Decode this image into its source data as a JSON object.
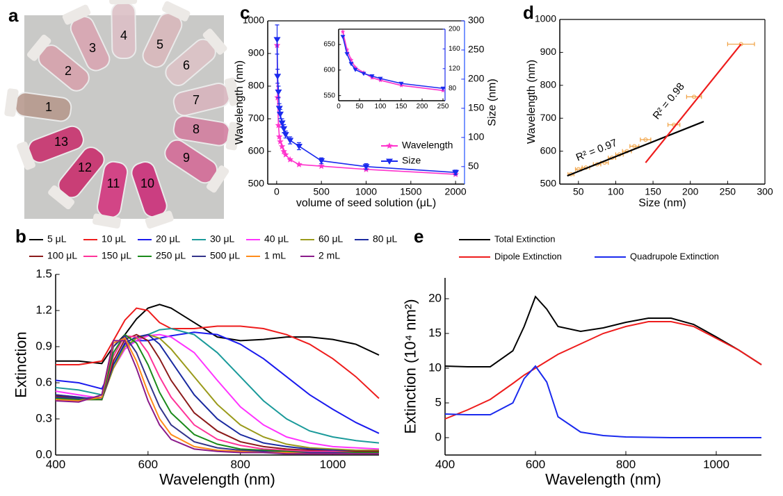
{
  "photo": {
    "panel_label": "a",
    "tubes": [
      "1",
      "2",
      "3",
      "4",
      "5",
      "6",
      "7",
      "8",
      "9",
      "10",
      "11",
      "12",
      "13"
    ]
  },
  "chart_data": [
    {
      "type": "line",
      "panel_label": "b",
      "xlabel": "Wavelength (nm)",
      "ylabel": "Extinction",
      "x": [
        400,
        450,
        500,
        525,
        550,
        575,
        600,
        625,
        650,
        700,
        750,
        800,
        850,
        900,
        950,
        1000,
        1050,
        1100
      ],
      "xlim": [
        400,
        1100
      ],
      "xticks": [
        400,
        600,
        800,
        1000
      ],
      "ylim": [
        0,
        1.5
      ],
      "yticks": [
        {
          "value": 0,
          "label": "0.0"
        },
        0.3,
        0.6,
        0.9,
        1.2,
        1.5
      ],
      "series": [
        {
          "name": "5 μL",
          "color": "#000000",
          "values": [
            0.78,
            0.78,
            0.76,
            0.9,
            1.0,
            1.13,
            1.22,
            1.25,
            1.22,
            1.1,
            0.98,
            0.95,
            0.96,
            0.98,
            0.98,
            0.96,
            0.92,
            0.83
          ]
        },
        {
          "name": "10 μL",
          "color": "#ee1c1c",
          "values": [
            0.75,
            0.75,
            0.78,
            0.95,
            1.12,
            1.22,
            1.2,
            1.1,
            1.05,
            1.05,
            1.07,
            1.07,
            1.05,
            1.0,
            0.92,
            0.8,
            0.65,
            0.47
          ]
        },
        {
          "name": "20 μL",
          "color": "#1a1aee",
          "values": [
            0.62,
            0.6,
            0.55,
            0.75,
            0.92,
            0.95,
            0.95,
            0.97,
            0.99,
            1.02,
            1.0,
            0.92,
            0.8,
            0.65,
            0.5,
            0.38,
            0.27,
            0.18
          ]
        },
        {
          "name": "30 μL",
          "color": "#1a9a9a",
          "values": [
            0.56,
            0.54,
            0.5,
            0.75,
            0.9,
            0.95,
            1.0,
            1.04,
            1.05,
            1.0,
            0.85,
            0.65,
            0.45,
            0.3,
            0.2,
            0.15,
            0.12,
            0.1
          ]
        },
        {
          "name": "40 μL",
          "color": "#ff33ff",
          "values": [
            0.53,
            0.5,
            0.47,
            0.72,
            0.88,
            0.95,
            0.99,
            1.0,
            0.98,
            0.85,
            0.62,
            0.4,
            0.25,
            0.15,
            0.1,
            0.07,
            0.06,
            0.05
          ]
        },
        {
          "name": "60 μL",
          "color": "#9a9a1a",
          "values": [
            0.5,
            0.48,
            0.46,
            0.72,
            0.9,
            0.97,
            1.0,
            0.97,
            0.88,
            0.65,
            0.42,
            0.25,
            0.15,
            0.09,
            0.06,
            0.05,
            0.04,
            0.04
          ]
        },
        {
          "name": "80 μL",
          "color": "#1a2aa0",
          "values": [
            0.5,
            0.48,
            0.46,
            0.75,
            0.93,
            0.98,
            1.0,
            0.92,
            0.78,
            0.5,
            0.3,
            0.17,
            0.1,
            0.07,
            0.05,
            0.04,
            0.03,
            0.03
          ]
        },
        {
          "name": "100 μL",
          "color": "#8b1a1a",
          "values": [
            0.49,
            0.47,
            0.46,
            0.78,
            0.96,
            1.0,
            0.95,
            0.8,
            0.62,
            0.35,
            0.2,
            0.11,
            0.07,
            0.05,
            0.04,
            0.03,
            0.03,
            0.03
          ]
        },
        {
          "name": "150 μL",
          "color": "#ff3399",
          "values": [
            0.48,
            0.46,
            0.46,
            0.82,
            0.99,
            0.98,
            0.85,
            0.65,
            0.48,
            0.25,
            0.13,
            0.08,
            0.05,
            0.04,
            0.03,
            0.03,
            0.02,
            0.02
          ]
        },
        {
          "name": "250 μL",
          "color": "#1a8a1a",
          "values": [
            0.47,
            0.46,
            0.46,
            0.85,
            1.0,
            0.93,
            0.75,
            0.52,
            0.35,
            0.17,
            0.09,
            0.05,
            0.04,
            0.03,
            0.02,
            0.02,
            0.02,
            0.02
          ]
        },
        {
          "name": "500 μL",
          "color": "#33338a",
          "values": [
            0.48,
            0.47,
            0.48,
            0.9,
            0.99,
            0.85,
            0.62,
            0.4,
            0.25,
            0.11,
            0.06,
            0.04,
            0.03,
            0.02,
            0.02,
            0.02,
            0.01,
            0.01
          ]
        },
        {
          "name": "1 mL",
          "color": "#ff8c1a",
          "values": [
            0.46,
            0.45,
            0.48,
            0.93,
            0.97,
            0.78,
            0.52,
            0.3,
            0.17,
            0.07,
            0.04,
            0.03,
            0.02,
            0.02,
            0.01,
            0.01,
            0.01,
            0.01
          ]
        },
        {
          "name": "2 mL",
          "color": "#8a1a8a",
          "values": [
            0.45,
            0.44,
            0.5,
            0.95,
            0.95,
            0.72,
            0.45,
            0.25,
            0.13,
            0.05,
            0.03,
            0.02,
            0.02,
            0.01,
            0.01,
            0.01,
            0.01,
            0.01
          ]
        }
      ]
    },
    {
      "type": "line",
      "panel_label": "c",
      "xlabel": "volume of seed solution (μL)",
      "ylabel": "Wavelength (nm)",
      "y2label": "Size (nm)",
      "ylabel_color": "#e020c0",
      "y2label_color": "#1f4fff",
      "x": [
        5,
        10,
        20,
        30,
        40,
        60,
        80,
        100,
        150,
        250,
        500,
        1000,
        2000
      ],
      "xlim": [
        -100,
        2100
      ],
      "xticks": [
        0,
        500,
        1000,
        1500,
        2000
      ],
      "ylim": [
        500,
        1000
      ],
      "yticks": [
        500,
        600,
        700,
        800,
        900,
        1000
      ],
      "y2lim": [
        20,
        300
      ],
      "y2ticks": [
        50,
        100,
        150,
        200,
        250,
        300
      ],
      "series": [
        {
          "name": "Wavelength",
          "color": "#ff33cc",
          "marker": "star",
          "values": [
            925,
            765,
            680,
            645,
            630,
            615,
            600,
            590,
            575,
            560,
            555,
            545,
            530
          ]
        },
        {
          "name": "Size",
          "color": "#1a2aee",
          "marker": "triangle-down",
          "axis": "y2",
          "values": [
            268,
            205,
            178,
            150,
            140,
            125,
            115,
            105,
            95,
            85,
            60,
            50,
            40
          ],
          "errors": [
            25,
            12,
            10,
            8,
            8,
            7,
            7,
            6,
            6,
            6,
            5,
            5,
            4
          ]
        }
      ]
    },
    {
      "type": "line",
      "x": [
        10,
        20,
        30,
        40,
        60,
        80,
        100,
        150,
        250
      ],
      "xlim": [
        0,
        255
      ],
      "xticks": [
        0,
        50,
        100,
        150,
        200,
        250
      ],
      "ylim": [
        540,
        680
      ],
      "yticks": [
        550,
        600,
        650
      ],
      "y2lim": [
        55,
        200
      ],
      "y2ticks": [
        80,
        120,
        160,
        200
      ],
      "series": [
        {
          "color": "#ff33cc",
          "marker": "star",
          "values": [
            675,
            640,
            620,
            605,
            595,
            585,
            580,
            570,
            560
          ]
        },
        {
          "color": "#1a2aee",
          "marker": "triangle-down",
          "axis": "y2",
          "values": [
            185,
            150,
            130,
            118,
            110,
            105,
            100,
            90,
            80
          ]
        }
      ]
    },
    {
      "type": "scatter",
      "panel_label": "d",
      "xlabel": "Size (nm)",
      "ylabel": "Wavelength (nm)",
      "xlim": [
        25,
        300
      ],
      "xticks": [
        50,
        100,
        150,
        200,
        250,
        300
      ],
      "ylim": [
        500,
        1000
      ],
      "yticks": [
        500,
        600,
        700,
        800,
        900,
        1000
      ],
      "series": [
        {
          "color": "#f0a040",
          "x": [
            268,
            205,
            178,
            140,
            125,
            115,
            105,
            95,
            85,
            75,
            60,
            50,
            40
          ],
          "values": [
            925,
            765,
            680,
            635,
            615,
            600,
            590,
            580,
            565,
            560,
            550,
            545,
            530
          ],
          "xerr": [
            18,
            10,
            8,
            7,
            6,
            6,
            5,
            5,
            5,
            5,
            5,
            4,
            4
          ]
        }
      ],
      "fits": [
        {
          "label": "R² = 0.97",
          "color": "#000000",
          "x": [
            35,
            218
          ],
          "y": [
            525,
            690
          ]
        },
        {
          "label": "R² = 0.98",
          "color": "#ee1c1c",
          "x": [
            140,
            268
          ],
          "y": [
            565,
            925
          ]
        }
      ]
    },
    {
      "type": "line",
      "panel_label": "e",
      "xlabel": "Wavelength (nm)",
      "ylabel": "Extinction (10⁴ nm²)",
      "x": [
        400,
        450,
        500,
        550,
        575,
        600,
        625,
        650,
        700,
        750,
        800,
        850,
        900,
        950,
        1000,
        1050,
        1100
      ],
      "xlim": [
        400,
        1100
      ],
      "xticks": [
        400,
        600,
        800,
        1000
      ],
      "ylim": [
        -2.5,
        23
      ],
      "yticks": [
        0,
        5,
        10,
        15,
        20
      ],
      "series": [
        {
          "name": "Total Extinction",
          "color": "#000000",
          "values": [
            10.3,
            10.2,
            10.2,
            12.5,
            16,
            20.3,
            18.5,
            16,
            15.3,
            15.8,
            16.6,
            17.2,
            17.2,
            16.3,
            14.5,
            12.6,
            10.5
          ]
        },
        {
          "name": "Dipole Extinction",
          "color": "#ee1c1c",
          "values": [
            2.7,
            4,
            5.5,
            7.8,
            9,
            10,
            11,
            12,
            13.5,
            15,
            16,
            16.7,
            16.7,
            16,
            14.3,
            12.6,
            10.5
          ]
        },
        {
          "name": "Quadrupole Extinction",
          "color": "#1a2aee",
          "values": [
            3.4,
            3.3,
            3.3,
            5,
            8.5,
            10.3,
            8,
            3,
            0.8,
            0.3,
            0.1,
            0.05,
            0,
            0,
            0,
            0,
            0
          ]
        }
      ]
    }
  ]
}
